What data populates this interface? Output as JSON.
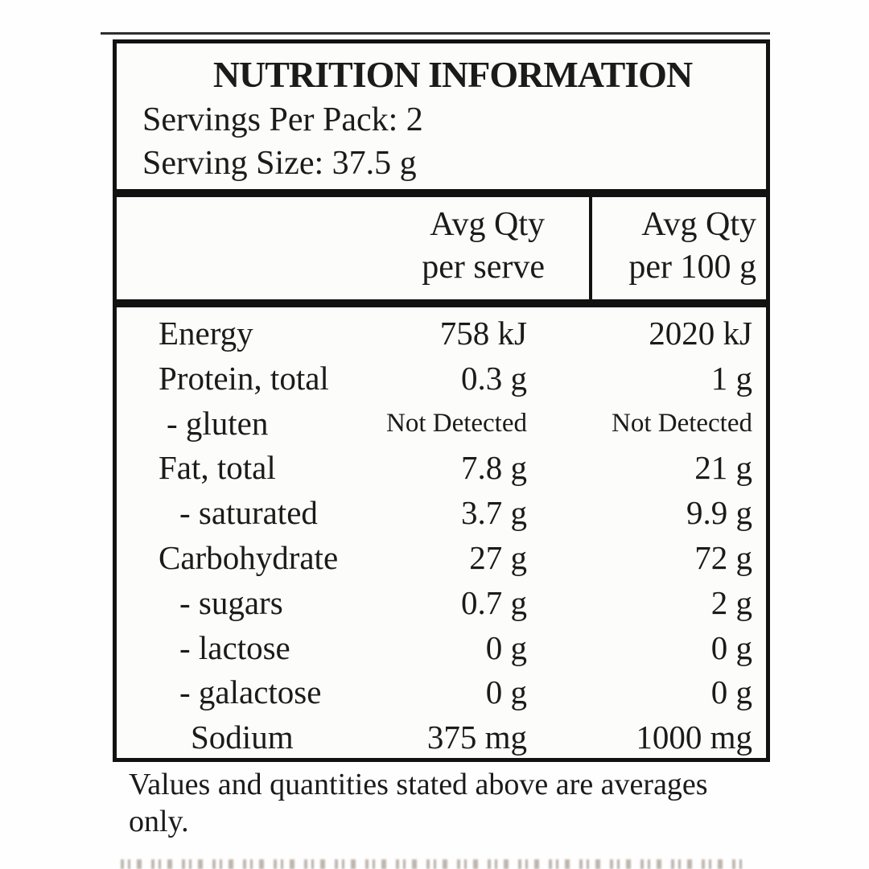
{
  "page": {
    "background": "#fefefe",
    "text_color": "#1b1b1b",
    "border_color": "#121212"
  },
  "label": {
    "title": "NUTRITION INFORMATION",
    "servings_per_pack": "Servings Per Pack: 2",
    "serving_size": "Serving Size: 37.5 g",
    "columns": [
      {
        "line1": "Avg Qty",
        "line2": "per serve"
      },
      {
        "line1": "Avg Qty",
        "line2": "per 100 g"
      }
    ],
    "rows": [
      {
        "name": "Energy",
        "per_serve": "758 kJ",
        "per_100g": "2020 kJ",
        "indent": 0,
        "small": false
      },
      {
        "name": "Protein, total",
        "per_serve": "0.3 g",
        "per_100g": "1 g",
        "indent": 0,
        "small": false
      },
      {
        "name": "- gluten",
        "per_serve": "Not Detected",
        "per_100g": "Not Detected",
        "indent": 1,
        "small": true
      },
      {
        "name": "Fat, total",
        "per_serve": "7.8 g",
        "per_100g": "21 g",
        "indent": 0,
        "small": false
      },
      {
        "name": "- saturated",
        "per_serve": "3.7 g",
        "per_100g": "9.9 g",
        "indent": 2,
        "small": false
      },
      {
        "name": "Carbohydrate",
        "per_serve": "27 g",
        "per_100g": "72 g",
        "indent": 0,
        "small": false
      },
      {
        "name": "- sugars",
        "per_serve": "0.7 g",
        "per_100g": "2 g",
        "indent": 2,
        "small": false
      },
      {
        "name": "- lactose",
        "per_serve": "0 g",
        "per_100g": "0 g",
        "indent": 2,
        "small": false
      },
      {
        "name": "- galactose",
        "per_serve": "0 g",
        "per_100g": "0 g",
        "indent": 2,
        "small": false
      },
      {
        "name": "Sodium",
        "per_serve": "375 mg",
        "per_100g": "1000 mg",
        "indent": 3,
        "small": false
      }
    ],
    "footnote": "Values and quantities stated above are averages only."
  }
}
